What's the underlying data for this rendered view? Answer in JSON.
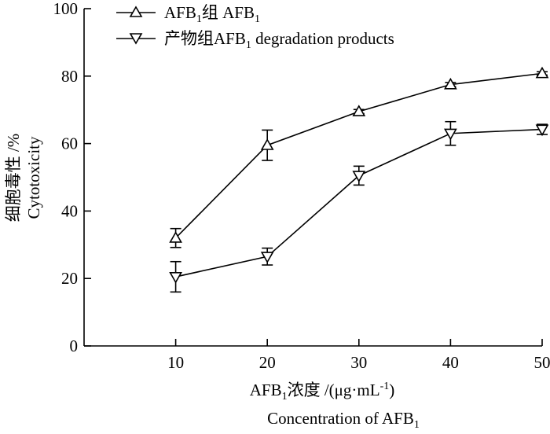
{
  "chart_data": {
    "type": "line",
    "x": [
      10,
      20,
      30,
      40,
      50
    ],
    "xlim": [
      0,
      50
    ],
    "ylim": [
      0,
      100
    ],
    "xticks": [
      "10",
      "20",
      "30",
      "40",
      "50"
    ],
    "yticks": [
      "0",
      "20",
      "40",
      "60",
      "80",
      "100"
    ],
    "grid": false,
    "legend_position": "top-left",
    "xlabel": {
      "line1": {
        "pre": "AFB",
        "sub": "1",
        "post": "浓度 /(μg·mL",
        "sup": "-1",
        "end": ")"
      },
      "line2": {
        "pre": "Concentration of AFB",
        "sub": "1"
      }
    },
    "ylabel": {
      "line1": "细胞毒性 /%",
      "line2": "Cytotoxicity"
    },
    "series": [
      {
        "key": "afb1",
        "legend": {
          "pre": "AFB",
          "sub": "1",
          "mid": "组 AFB",
          "sub2": "1",
          "post": ""
        },
        "marker": "triangle-up",
        "values": [
          32,
          59.5,
          69.5,
          77.5,
          80.8
        ],
        "errors": [
          2.8,
          4.5,
          0.6,
          0.6,
          0.5
        ]
      },
      {
        "key": "products",
        "legend": {
          "pre": "产物组AFB",
          "sub": "1",
          "mid": " degradation products",
          "sub2": "",
          "post": ""
        },
        "marker": "triangle-down",
        "values": [
          20.5,
          26.5,
          50.5,
          63,
          64.2
        ],
        "errors": [
          4.5,
          2.5,
          2.8,
          3.5,
          1.5
        ]
      }
    ]
  }
}
